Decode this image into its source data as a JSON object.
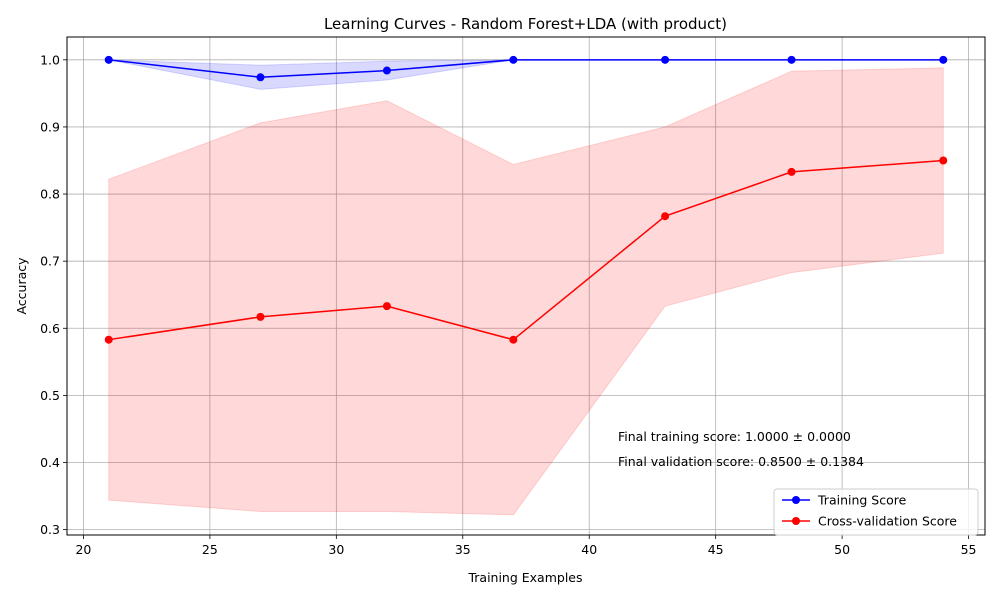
{
  "chart_data": {
    "type": "line",
    "title": "Learning Curves - Random Forest+LDA (with product)",
    "xlabel": "Training Examples",
    "ylabel": "Accuracy",
    "xlim": [
      19.35,
      55.65
    ],
    "ylim": [
      0.292,
      1.034
    ],
    "xticks": [
      20,
      25,
      30,
      35,
      40,
      45,
      50,
      55
    ],
    "yticks": [
      0.3,
      0.4,
      0.5,
      0.6,
      0.7,
      0.8,
      0.9,
      1.0
    ],
    "xtick_labels": [
      "20",
      "25",
      "30",
      "35",
      "40",
      "45",
      "50",
      "55"
    ],
    "ytick_labels": [
      "0.3",
      "0.4",
      "0.5",
      "0.6",
      "0.7",
      "0.8",
      "0.9",
      "1.0"
    ],
    "grid": true,
    "legend_position": "bottom-right",
    "x": [
      21,
      27,
      32,
      37,
      43,
      48,
      54
    ],
    "series": [
      {
        "name": "Training Score",
        "color": "#0000ff",
        "band_color": "#0000ff",
        "values": [
          1.0,
          0.974,
          0.984,
          1.0,
          1.0,
          1.0,
          1.0
        ],
        "band_lower": [
          1.0,
          0.956,
          0.97,
          1.0,
          1.0,
          1.0,
          1.0
        ],
        "band_upper": [
          1.0,
          0.992,
          0.998,
          1.0,
          1.0,
          1.0,
          1.0
        ]
      },
      {
        "name": "Cross-validation Score",
        "color": "#ff0000",
        "band_color": "#ff0000",
        "values": [
          0.583,
          0.617,
          0.633,
          0.583,
          0.767,
          0.833,
          0.85
        ],
        "band_lower": [
          0.344,
          0.327,
          0.327,
          0.322,
          0.633,
          0.683,
          0.712
        ],
        "band_upper": [
          0.822,
          0.906,
          0.939,
          0.844,
          0.9,
          0.983,
          0.988
        ]
      }
    ],
    "annotations": [
      "Final training score: 1.0000 ± 0.0000",
      "Final validation score: 0.8500 ± 0.1384"
    ]
  }
}
